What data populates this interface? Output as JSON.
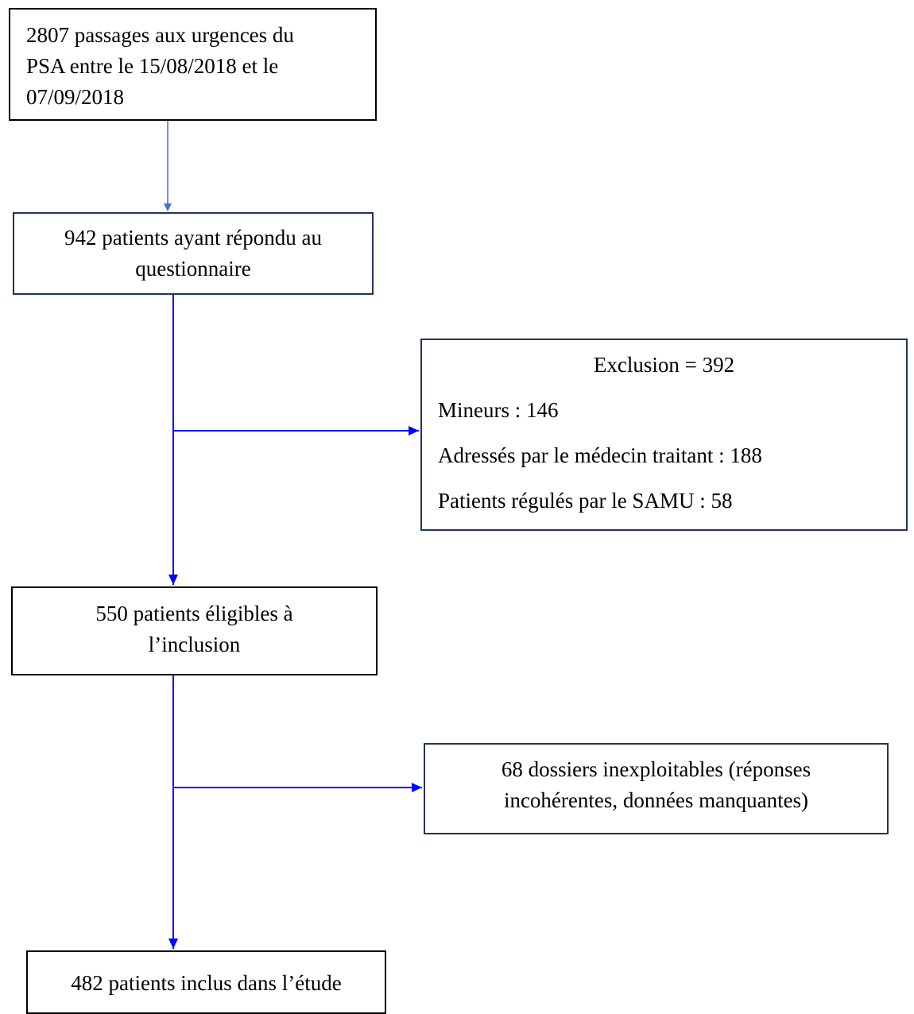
{
  "flowchart": {
    "start": {
      "line1": "2807 passages aux urgences du",
      "line2": "PSA entre le 15/08/2018 et le",
      "line3": "07/09/2018"
    },
    "responded": {
      "line1": "942 patients ayant répondu au",
      "line2": "questionnaire"
    },
    "exclusion": {
      "title": "Exclusion = 392",
      "items": [
        "Mineurs : 146",
        "Adressés par le médecin traitant : 188",
        "Patients régulés par le SAMU : 58"
      ]
    },
    "eligible": {
      "line1": "550 patients éligibles à",
      "line2": "l’inclusion"
    },
    "unusable": {
      "line1": "68 dossiers inexploitables (réponses",
      "line2": "incohérentes, données manquantes)"
    },
    "included": {
      "line1": "482 patients inclus dans l’étude"
    }
  },
  "colors": {
    "box_border_dark": "#000000",
    "box_border_navy": "#1f3556",
    "first_arrow": "#4472c4",
    "arrows": "#0000ff"
  }
}
